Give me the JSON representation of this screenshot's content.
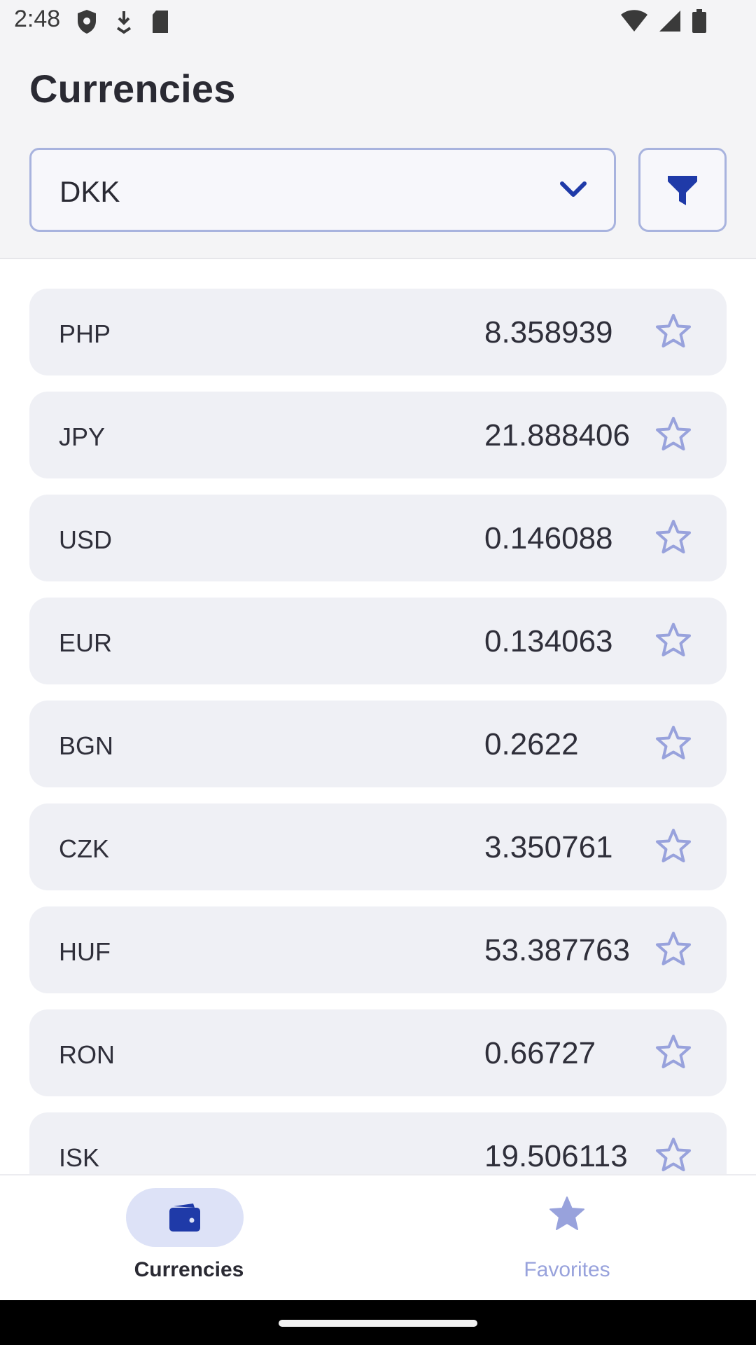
{
  "status_bar": {
    "time": "2:48",
    "left_icons": [
      "shield-icon",
      "download-icon",
      "sd-card-icon"
    ],
    "right_icons": [
      "wifi-icon",
      "signal-icon",
      "battery-icon"
    ]
  },
  "header": {
    "title": "Currencies",
    "base_currency": "DKK",
    "filter_icon": "filter-icon"
  },
  "rates": [
    {
      "code": "PHP",
      "rate": "8.358939",
      "favorite": false
    },
    {
      "code": "JPY",
      "rate": "21.888406",
      "favorite": false
    },
    {
      "code": "USD",
      "rate": "0.146088",
      "favorite": false
    },
    {
      "code": "EUR",
      "rate": "0.134063",
      "favorite": false
    },
    {
      "code": "BGN",
      "rate": "0.2622",
      "favorite": false
    },
    {
      "code": "CZK",
      "rate": "3.350761",
      "favorite": false
    },
    {
      "code": "HUF",
      "rate": "53.387763",
      "favorite": false
    },
    {
      "code": "RON",
      "rate": "0.66727",
      "favorite": false
    },
    {
      "code": "ISK",
      "rate": "19.506113",
      "favorite": false
    }
  ],
  "bottom_nav": {
    "items": [
      {
        "label": "Currencies",
        "icon": "wallet-icon",
        "active": true
      },
      {
        "label": "Favorites",
        "icon": "star-icon",
        "active": false
      }
    ]
  },
  "colors": {
    "accent": "#1f3aa8",
    "outline": "#a8b3de",
    "row_bg": "#eff0f5",
    "star": "#98a2dc",
    "nav_pill": "#dde2f7"
  }
}
